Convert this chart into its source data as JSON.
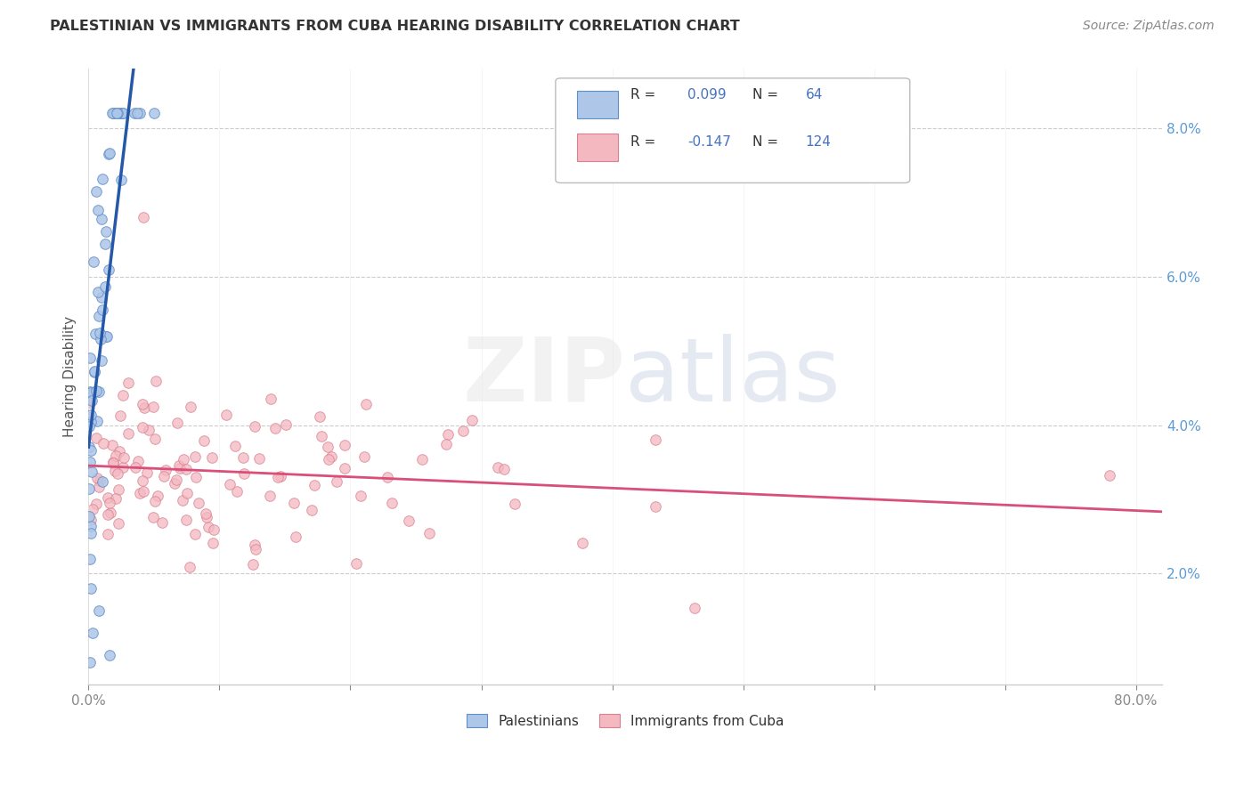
{
  "title": "PALESTINIAN VS IMMIGRANTS FROM CUBA HEARING DISABILITY CORRELATION CHART",
  "source": "Source: ZipAtlas.com",
  "ylabel": "Hearing Disability",
  "ytick_labels": [
    "2.0%",
    "4.0%",
    "6.0%",
    "8.0%"
  ],
  "ytick_values": [
    0.02,
    0.04,
    0.06,
    0.08
  ],
  "blue_color": "#4472c4",
  "pink_color": "#f4b8c1",
  "blue_scatter_color": "#aec6e8",
  "pink_scatter_color": "#f4b8c1",
  "blue_line_color": "#2558a8",
  "pink_line_color": "#d94f7a",
  "blue_dashed_color": "#7fafd4",
  "watermark": "ZIPatlas",
  "background_color": "#ffffff",
  "xlim": [
    0.0,
    0.82
  ],
  "ylim": [
    0.005,
    0.088
  ],
  "legend_R1": "0.099",
  "legend_N1": "64",
  "legend_R2": "-0.147",
  "legend_N2": "124",
  "label1": "Palestinians",
  "label2": "Immigrants from Cuba",
  "pal_R": 0.099,
  "pal_N": 64,
  "cuba_R": -0.147,
  "cuba_N": 124
}
